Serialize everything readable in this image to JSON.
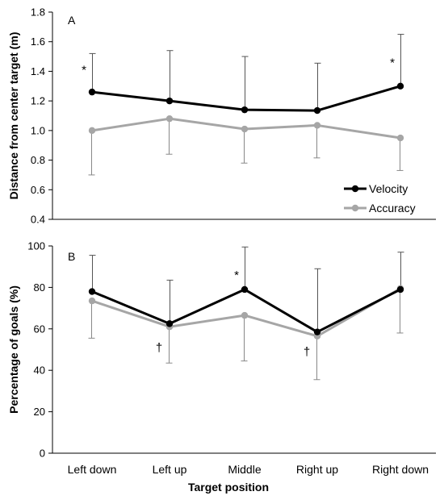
{
  "chart_data": [
    {
      "type": "line",
      "panel_label": "A",
      "ylabel": "Distance from center target (m)",
      "xlabel": "",
      "categories": [
        "Left down",
        "Left up",
        "Middle",
        "Right up",
        "Right down"
      ],
      "ylim": [
        0.4,
        1.8
      ],
      "yticks": [
        "0.4",
        "0.6",
        "0.8",
        "1.0",
        "1.2",
        "1.4",
        "1.6",
        "1.8"
      ],
      "legend_position": "bottom-right",
      "series": [
        {
          "name": "Velocity",
          "color": "#000000",
          "values": [
            1.26,
            1.2,
            1.14,
            1.135,
            1.3
          ],
          "error": [
            0.26,
            0.34,
            0.36,
            0.32,
            0.35
          ],
          "error_direction": "up"
        },
        {
          "name": "Accuracy",
          "color": "#a6a6a6",
          "values": [
            1.0,
            1.08,
            1.01,
            1.035,
            0.95
          ],
          "error": [
            0.3,
            0.24,
            0.23,
            0.22,
            0.22
          ],
          "error_direction": "down"
        }
      ],
      "annotations": [
        {
          "text": "*",
          "category": "Left down",
          "y": 1.41
        },
        {
          "text": "*",
          "category": "Right down",
          "y": 1.46
        }
      ]
    },
    {
      "type": "line",
      "panel_label": "B",
      "ylabel": "Percentage of goals (%)",
      "xlabel": "Target position",
      "categories": [
        "Left down",
        "Left up",
        "Middle",
        "Right up",
        "Right down"
      ],
      "ylim": [
        0,
        100
      ],
      "yticks": [
        "0",
        "20",
        "40",
        "60",
        "80",
        "100"
      ],
      "series": [
        {
          "name": "Velocity",
          "color": "#000000",
          "values": [
            78,
            62.5,
            79,
            58.5,
            79
          ],
          "error": [
            17.5,
            21,
            20.5,
            30.5,
            18
          ],
          "error_direction": "up"
        },
        {
          "name": "Accuracy",
          "color": "#a6a6a6",
          "values": [
            73.5,
            61,
            66.5,
            56.5,
            79.5
          ],
          "error": [
            18,
            17.5,
            22,
            21,
            21.5
          ],
          "error_direction": "down"
        }
      ],
      "annotations": [
        {
          "text": "*",
          "category": "Middle",
          "y": 86
        },
        {
          "text": "†",
          "category": "Left up",
          "y": 51
        },
        {
          "text": "†",
          "category": "Right up",
          "y": 49
        }
      ]
    }
  ]
}
